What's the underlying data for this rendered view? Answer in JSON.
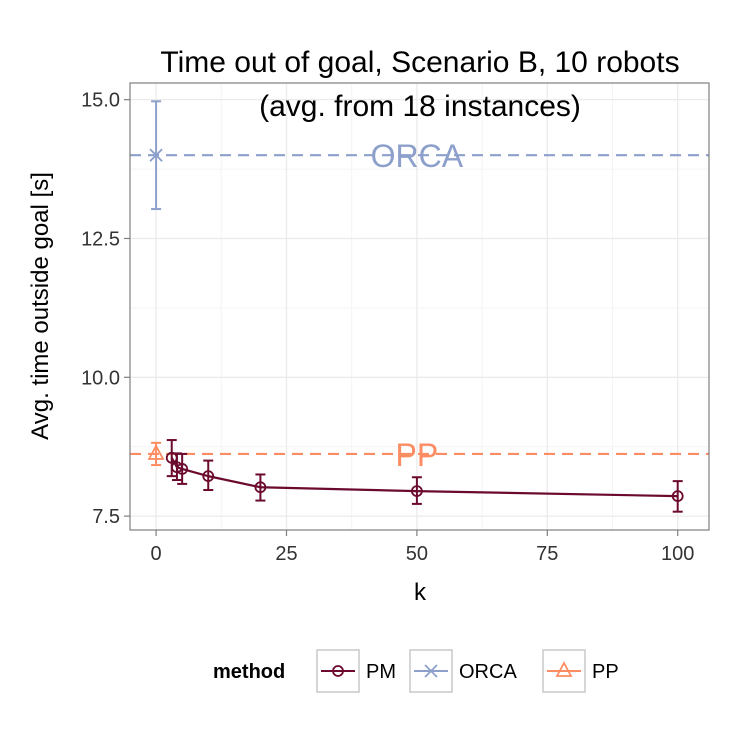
{
  "chart_data": {
    "type": "line",
    "title": "Time out of goal, Scenario B, 10 robots",
    "subtitle": "(avg. from 18 instances)",
    "xlabel": "k",
    "ylabel": "Avg. time outside goal [s]",
    "xlim": [
      -5,
      106
    ],
    "ylim": [
      7.25,
      15.3
    ],
    "x_ticks": [
      0,
      25,
      50,
      75,
      100
    ],
    "x_tick_labels": [
      "0",
      "25",
      "50",
      "75",
      "100"
    ],
    "y_ticks": [
      7.5,
      10.0,
      12.5,
      15.0
    ],
    "y_tick_labels": [
      "7.5",
      "10.0",
      "12.5",
      "15.0"
    ],
    "grid": true,
    "legend": {
      "title": "method",
      "position": "bottom",
      "entries": [
        {
          "label": "PM",
          "marker": "circle",
          "color": "#6b0a2e"
        },
        {
          "label": "ORCA",
          "marker": "cross",
          "color": "#8da0cb"
        },
        {
          "label": "PP",
          "marker": "triangle",
          "color": "#fc8d62"
        }
      ]
    },
    "series": [
      {
        "name": "PM",
        "color": "#6b0a2e",
        "marker": "circle",
        "x": [
          3,
          4,
          5,
          10,
          20,
          50,
          100
        ],
        "y": [
          8.55,
          8.38,
          8.35,
          8.22,
          8.02,
          7.95,
          7.86
        ],
        "err_low": [
          8.22,
          8.15,
          8.08,
          7.97,
          7.78,
          7.72,
          7.58
        ],
        "err_high": [
          8.87,
          8.63,
          8.62,
          8.5,
          8.25,
          8.2,
          8.13
        ]
      },
      {
        "name": "ORCA",
        "color": "#8da0cb",
        "marker": "cross",
        "x": [
          0
        ],
        "y": [
          14.0
        ],
        "err_low": [
          13.03
        ],
        "err_high": [
          14.97
        ]
      },
      {
        "name": "PP",
        "color": "#fc8d62",
        "marker": "triangle",
        "x": [
          0
        ],
        "y": [
          8.62
        ],
        "err_low": [
          8.42
        ],
        "err_high": [
          8.82
        ]
      }
    ],
    "reference_lines": [
      {
        "name": "ORCA",
        "label": "ORCA",
        "y": 14.0,
        "color": "#8da0cb",
        "label_x": 50
      },
      {
        "name": "PP",
        "label": "PP",
        "y": 8.62,
        "color": "#fc8d62",
        "label_x": 50
      }
    ]
  }
}
